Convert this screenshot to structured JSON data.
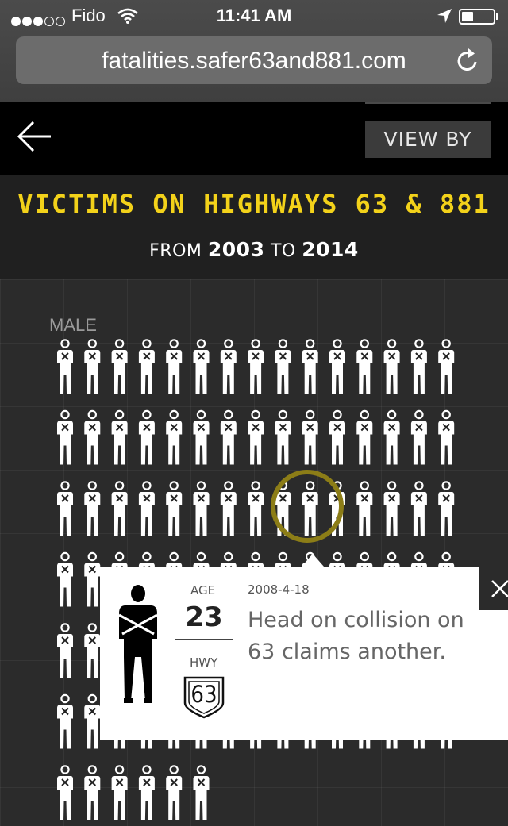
{
  "status_bar": {
    "carrier": "Fido",
    "time": "11:41 AM",
    "signal_bars_filled": 3,
    "signal_bars_total": 5
  },
  "browser": {
    "url": "fatalities.safer63and881.com"
  },
  "header": {
    "view_by_label": "VIEW BY"
  },
  "page": {
    "title": "VICTIMS ON HIGHWAYS 63 & 881",
    "subtitle_from": "FROM",
    "subtitle_start": "2003",
    "subtitle_to": "TO",
    "subtitle_end": "2014"
  },
  "group": {
    "label": "MALE",
    "visible_figures": 96
  },
  "selected_victim": {
    "age_label": "AGE",
    "age": "23",
    "hwy_label": "HWY",
    "highway": "63",
    "date": "2008-4-18",
    "headline": "Head on collision on 63 claims another."
  },
  "colors": {
    "title_yellow": "#f3d21a",
    "highlight_ring": "#8c7d17",
    "header_black": "#000000",
    "background": "#2b2b2b"
  },
  "icons": {
    "back": "arrow-left-icon",
    "close": "close-icon",
    "reload": "reload-icon",
    "figure": "person-crossed-icon"
  }
}
